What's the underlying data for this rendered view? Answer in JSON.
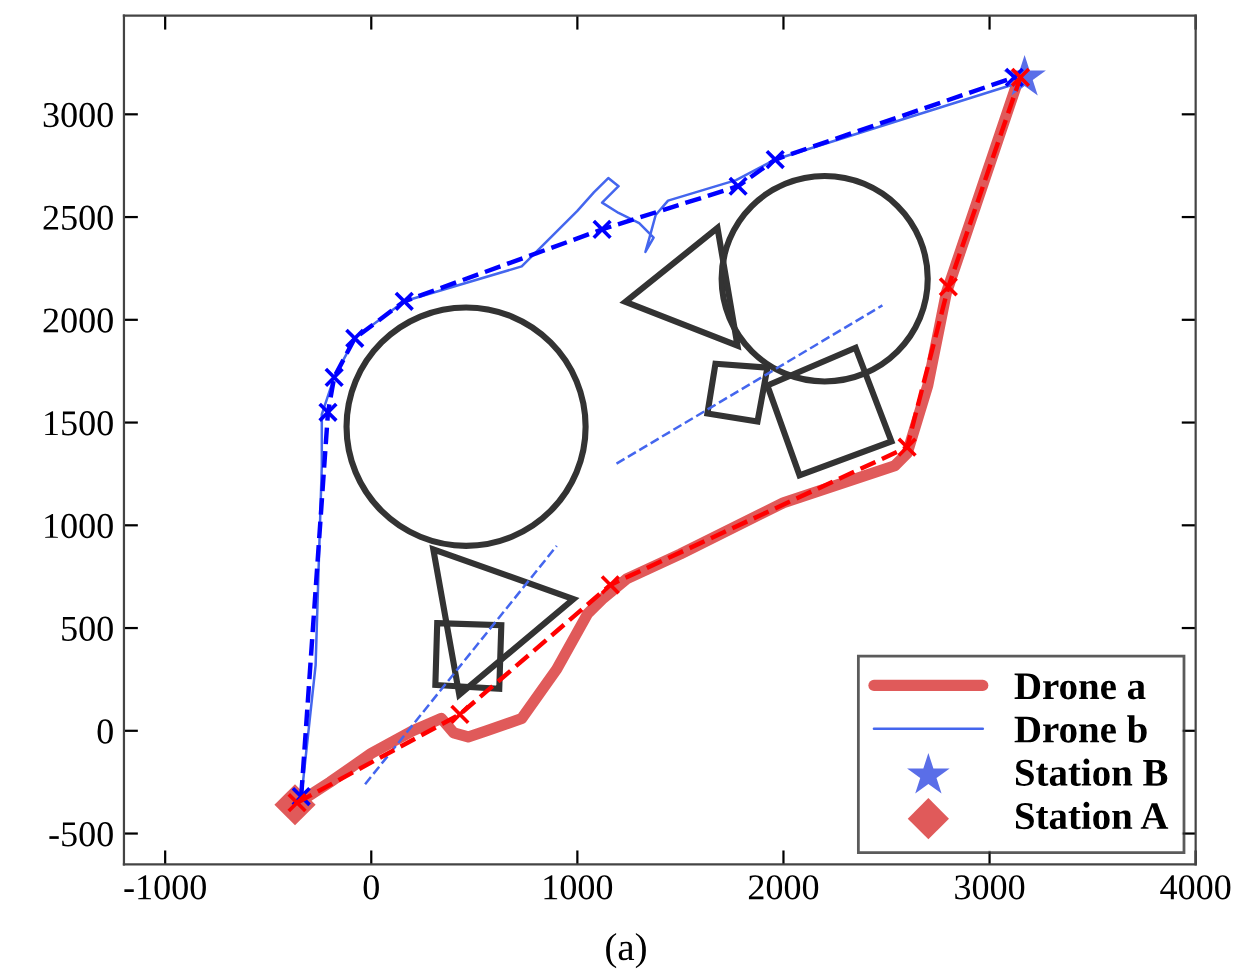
{
  "chart_data": {
    "type": "line",
    "annotations": [
      "(a)"
    ],
    "xlim": [
      -1200,
      4000
    ],
    "ylim": [
      -650,
      3480
    ],
    "xticks": [
      -1000,
      0,
      1000,
      2000,
      3000,
      4000
    ],
    "yticks": [
      -500,
      0,
      500,
      1000,
      1500,
      2000,
      2500,
      3000
    ],
    "grid": false,
    "legend": "bottom right",
    "series": [
      {
        "name": "Drone a",
        "color": "#e05a5a",
        "line_style": "solid",
        "marker": "none",
        "x": [
          -370,
          -200,
          0,
          200,
          340,
          400,
          470,
          560,
          730,
          900,
          1050,
          1120,
          1240,
          1500,
          2000,
          2540,
          2600,
          2700,
          2790,
          3130,
          3170
        ],
        "values": [
          -360,
          -250,
          -110,
          0,
          60,
          -10,
          -30,
          0,
          60,
          300,
          570,
          640,
          740,
          860,
          1110,
          1290,
          1350,
          1680,
          2130,
          3140,
          3180
        ]
      },
      {
        "name": "Drone b",
        "color": "#4466ee",
        "line_style": "solid",
        "marker": "none",
        "x": [
          -340,
          -270,
          -240,
          -240,
          -180,
          -80,
          160,
          730,
          1000,
          1080,
          1150,
          1200,
          1120,
          1200,
          1300,
          1370,
          1330,
          1350,
          1380,
          1440,
          1770,
          1960,
          3130,
          3170
        ],
        "values": [
          -330,
          320,
          1290,
          1540,
          1720,
          1910,
          2090,
          2260,
          2530,
          2620,
          2690,
          2650,
          2570,
          2520,
          2470,
          2400,
          2330,
          2400,
          2510,
          2580,
          2680,
          2780,
          3150,
          3180
        ]
      },
      {
        "type": "line",
        "color": "#ff0000",
        "line_style": "dashed",
        "marker": "cross",
        "x": [
          -360,
          430,
          1160,
          2600,
          2800,
          3150
        ],
        "values": [
          -350,
          80,
          710,
          1380,
          2160,
          3180
        ]
      },
      {
        "type": "line",
        "color": "#0000ff",
        "line_style": "dashed",
        "marker": "cross",
        "x": [
          -340,
          -210,
          -180,
          -80,
          160,
          1120,
          1780,
          1960,
          3120
        ],
        "values": [
          -320,
          1550,
          1720,
          1910,
          2090,
          2440,
          2650,
          2780,
          3180
        ]
      },
      {
        "type": "line",
        "color": "#4466ee",
        "line_style": "dashed",
        "marker": "none",
        "x": [
          -30,
          900
        ],
        "values": [
          -260,
          900
        ]
      },
      {
        "type": "line",
        "color": "#4466ee",
        "line_style": "dashed",
        "marker": "none",
        "x": [
          1190,
          2480
        ],
        "values": [
          1300,
          2070
        ]
      },
      {
        "name": "Station B",
        "type": "scatter",
        "color": "#5a6ee8",
        "marker": "star",
        "x": [
          3170
        ],
        "values": [
          3180
        ]
      },
      {
        "name": "Station A",
        "type": "scatter",
        "color": "#e05a5a",
        "marker": "diamond",
        "x": [
          -370
        ],
        "values": [
          -360
        ]
      }
    ]
  }
}
